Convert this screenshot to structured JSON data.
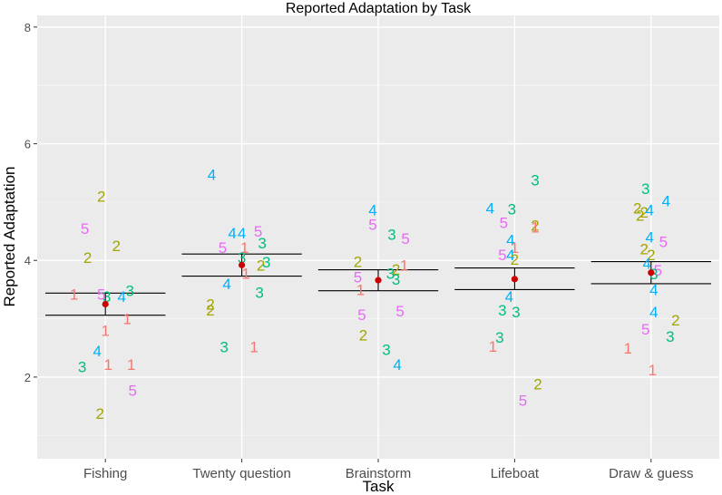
{
  "chart_data": {
    "type": "scatter",
    "title": "Reported Adaptation by Task",
    "xlabel": "Task",
    "ylabel": "Reported Adaptation",
    "categories": [
      "Fishing",
      "Twenty question",
      "Brainstorm",
      "Lifeboat",
      "Draw & guess"
    ],
    "ylim": [
      0.6,
      8.2
    ],
    "yticks": [
      2,
      4,
      6,
      8
    ],
    "grid": true,
    "group_colors": {
      "1": "#F8766D",
      "2": "#A3A500",
      "3": "#00BF7D",
      "4": "#00B0F6",
      "5": "#E76BF3"
    },
    "mean_color": "#CC0000",
    "points": [
      {
        "task": 0,
        "offset": -0.03,
        "y": 5.1,
        "label": "2"
      },
      {
        "task": 0,
        "offset": -0.15,
        "y": 4.55,
        "label": "5"
      },
      {
        "task": 0,
        "offset": 0.08,
        "y": 4.25,
        "label": "2"
      },
      {
        "task": 0,
        "offset": -0.13,
        "y": 4.05,
        "label": "2"
      },
      {
        "task": 0,
        "offset": 0.18,
        "y": 3.48,
        "label": "3"
      },
      {
        "task": 0,
        "offset": -0.03,
        "y": 3.42,
        "label": "5"
      },
      {
        "task": 0,
        "offset": -0.23,
        "y": 3.42,
        "label": "1"
      },
      {
        "task": 0,
        "offset": 0.01,
        "y": 3.38,
        "label": "3"
      },
      {
        "task": 0,
        "offset": 0.12,
        "y": 3.38,
        "label": "4"
      },
      {
        "task": 0,
        "offset": 0.16,
        "y": 3.0,
        "label": "1"
      },
      {
        "task": 0,
        "offset": 0.0,
        "y": 2.8,
        "label": "1"
      },
      {
        "task": 0,
        "offset": -0.06,
        "y": 2.45,
        "label": "4"
      },
      {
        "task": 0,
        "offset": -0.17,
        "y": 2.18,
        "label": "3"
      },
      {
        "task": 0,
        "offset": 0.02,
        "y": 2.22,
        "label": "1"
      },
      {
        "task": 0,
        "offset": 0.19,
        "y": 2.22,
        "label": "1"
      },
      {
        "task": 0,
        "offset": 0.2,
        "y": 1.77,
        "label": "5"
      },
      {
        "task": 0,
        "offset": -0.04,
        "y": 1.38,
        "label": "2"
      },
      {
        "task": 1,
        "offset": -0.22,
        "y": 5.47,
        "label": "4"
      },
      {
        "task": 1,
        "offset": -0.07,
        "y": 4.47,
        "label": "4"
      },
      {
        "task": 1,
        "offset": 0.12,
        "y": 4.5,
        "label": "5"
      },
      {
        "task": 1,
        "offset": 0.0,
        "y": 4.47,
        "label": "4"
      },
      {
        "task": 1,
        "offset": 0.15,
        "y": 4.3,
        "label": "3"
      },
      {
        "task": 1,
        "offset": -0.14,
        "y": 4.22,
        "label": "5"
      },
      {
        "task": 1,
        "offset": 0.02,
        "y": 4.22,
        "label": "1"
      },
      {
        "task": 1,
        "offset": 0.0,
        "y": 4.05,
        "label": "3"
      },
      {
        "task": 1,
        "offset": 0.18,
        "y": 3.97,
        "label": "3"
      },
      {
        "task": 1,
        "offset": 0.14,
        "y": 3.92,
        "label": "2"
      },
      {
        "task": 1,
        "offset": 0.03,
        "y": 3.78,
        "label": "1"
      },
      {
        "task": 1,
        "offset": -0.11,
        "y": 3.6,
        "label": "4"
      },
      {
        "task": 1,
        "offset": 0.13,
        "y": 3.45,
        "label": "3"
      },
      {
        "task": 1,
        "offset": -0.23,
        "y": 3.25,
        "label": "2"
      },
      {
        "task": 1,
        "offset": -0.23,
        "y": 3.15,
        "label": "2"
      },
      {
        "task": 1,
        "offset": -0.13,
        "y": 2.52,
        "label": "3"
      },
      {
        "task": 1,
        "offset": 0.09,
        "y": 2.52,
        "label": "1"
      },
      {
        "task": 2,
        "offset": -0.04,
        "y": 4.87,
        "label": "4"
      },
      {
        "task": 2,
        "offset": -0.04,
        "y": 4.62,
        "label": "5"
      },
      {
        "task": 2,
        "offset": 0.1,
        "y": 4.45,
        "label": "3"
      },
      {
        "task": 2,
        "offset": 0.2,
        "y": 4.38,
        "label": "5"
      },
      {
        "task": 2,
        "offset": -0.15,
        "y": 3.98,
        "label": "2"
      },
      {
        "task": 2,
        "offset": 0.19,
        "y": 3.92,
        "label": "1"
      },
      {
        "task": 2,
        "offset": 0.13,
        "y": 3.85,
        "label": "2"
      },
      {
        "task": 2,
        "offset": 0.09,
        "y": 3.78,
        "label": "3"
      },
      {
        "task": 2,
        "offset": -0.15,
        "y": 3.72,
        "label": "5"
      },
      {
        "task": 2,
        "offset": 0.13,
        "y": 3.68,
        "label": "3"
      },
      {
        "task": 2,
        "offset": -0.13,
        "y": 3.5,
        "label": "1"
      },
      {
        "task": 2,
        "offset": 0.16,
        "y": 3.13,
        "label": "5"
      },
      {
        "task": 2,
        "offset": -0.12,
        "y": 3.07,
        "label": "5"
      },
      {
        "task": 2,
        "offset": -0.11,
        "y": 2.72,
        "label": "2"
      },
      {
        "task": 2,
        "offset": 0.06,
        "y": 2.47,
        "label": "3"
      },
      {
        "task": 2,
        "offset": 0.14,
        "y": 2.22,
        "label": "4"
      },
      {
        "task": 3,
        "offset": 0.15,
        "y": 5.38,
        "label": "3"
      },
      {
        "task": 3,
        "offset": -0.18,
        "y": 4.9,
        "label": "4"
      },
      {
        "task": 3,
        "offset": -0.02,
        "y": 4.88,
        "label": "3"
      },
      {
        "task": 3,
        "offset": -0.08,
        "y": 4.65,
        "label": "5"
      },
      {
        "task": 3,
        "offset": 0.15,
        "y": 4.6,
        "label": "2"
      },
      {
        "task": 3,
        "offset": 0.15,
        "y": 4.57,
        "label": "1"
      },
      {
        "task": 3,
        "offset": -0.03,
        "y": 4.35,
        "label": "4"
      },
      {
        "task": 3,
        "offset": 0.0,
        "y": 4.22,
        "label": "1"
      },
      {
        "task": 3,
        "offset": -0.09,
        "y": 4.1,
        "label": "5"
      },
      {
        "task": 3,
        "offset": -0.03,
        "y": 4.1,
        "label": "4"
      },
      {
        "task": 3,
        "offset": 0.0,
        "y": 4.02,
        "label": "2"
      },
      {
        "task": 3,
        "offset": -0.04,
        "y": 3.38,
        "label": "4"
      },
      {
        "task": 3,
        "offset": -0.09,
        "y": 3.15,
        "label": "3"
      },
      {
        "task": 3,
        "offset": 0.01,
        "y": 3.12,
        "label": "3"
      },
      {
        "task": 3,
        "offset": -0.11,
        "y": 2.68,
        "label": "3"
      },
      {
        "task": 3,
        "offset": -0.16,
        "y": 2.53,
        "label": "1"
      },
      {
        "task": 3,
        "offset": 0.17,
        "y": 1.88,
        "label": "2"
      },
      {
        "task": 3,
        "offset": 0.06,
        "y": 1.6,
        "label": "5"
      },
      {
        "task": 4,
        "offset": -0.04,
        "y": 5.23,
        "label": "3"
      },
      {
        "task": 4,
        "offset": 0.11,
        "y": 5.02,
        "label": "4"
      },
      {
        "task": 4,
        "offset": -0.1,
        "y": 4.9,
        "label": "2"
      },
      {
        "task": 4,
        "offset": -0.05,
        "y": 4.83,
        "label": "2"
      },
      {
        "task": 4,
        "offset": -0.08,
        "y": 4.77,
        "label": "2"
      },
      {
        "task": 4,
        "offset": -0.01,
        "y": 4.87,
        "label": "4"
      },
      {
        "task": 4,
        "offset": -0.01,
        "y": 4.4,
        "label": "4"
      },
      {
        "task": 4,
        "offset": 0.09,
        "y": 4.32,
        "label": "5"
      },
      {
        "task": 4,
        "offset": -0.05,
        "y": 4.2,
        "label": "2"
      },
      {
        "task": 4,
        "offset": 0.0,
        "y": 4.1,
        "label": "2"
      },
      {
        "task": 4,
        "offset": -0.03,
        "y": 3.95,
        "label": "4"
      },
      {
        "task": 4,
        "offset": 0.05,
        "y": 3.83,
        "label": "5"
      },
      {
        "task": 4,
        "offset": 0.02,
        "y": 3.77,
        "label": "3"
      },
      {
        "task": 4,
        "offset": 0.02,
        "y": 3.5,
        "label": "4"
      },
      {
        "task": 4,
        "offset": 0.02,
        "y": 3.12,
        "label": "4"
      },
      {
        "task": 4,
        "offset": 0.18,
        "y": 2.98,
        "label": "2"
      },
      {
        "task": 4,
        "offset": -0.04,
        "y": 2.82,
        "label": "5"
      },
      {
        "task": 4,
        "offset": 0.14,
        "y": 2.7,
        "label": "3"
      },
      {
        "task": 4,
        "offset": -0.17,
        "y": 2.5,
        "label": "1"
      },
      {
        "task": 4,
        "offset": 0.01,
        "y": 2.12,
        "label": "1"
      }
    ],
    "summary": [
      {
        "task": 0,
        "mean": 3.25,
        "lower": 3.06,
        "upper": 3.44
      },
      {
        "task": 1,
        "mean": 3.92,
        "lower": 3.73,
        "upper": 4.11
      },
      {
        "task": 2,
        "mean": 3.66,
        "lower": 3.48,
        "upper": 3.84
      },
      {
        "task": 3,
        "mean": 3.68,
        "lower": 3.5,
        "upper": 3.87
      },
      {
        "task": 4,
        "mean": 3.79,
        "lower": 3.6,
        "upper": 3.98
      }
    ]
  }
}
